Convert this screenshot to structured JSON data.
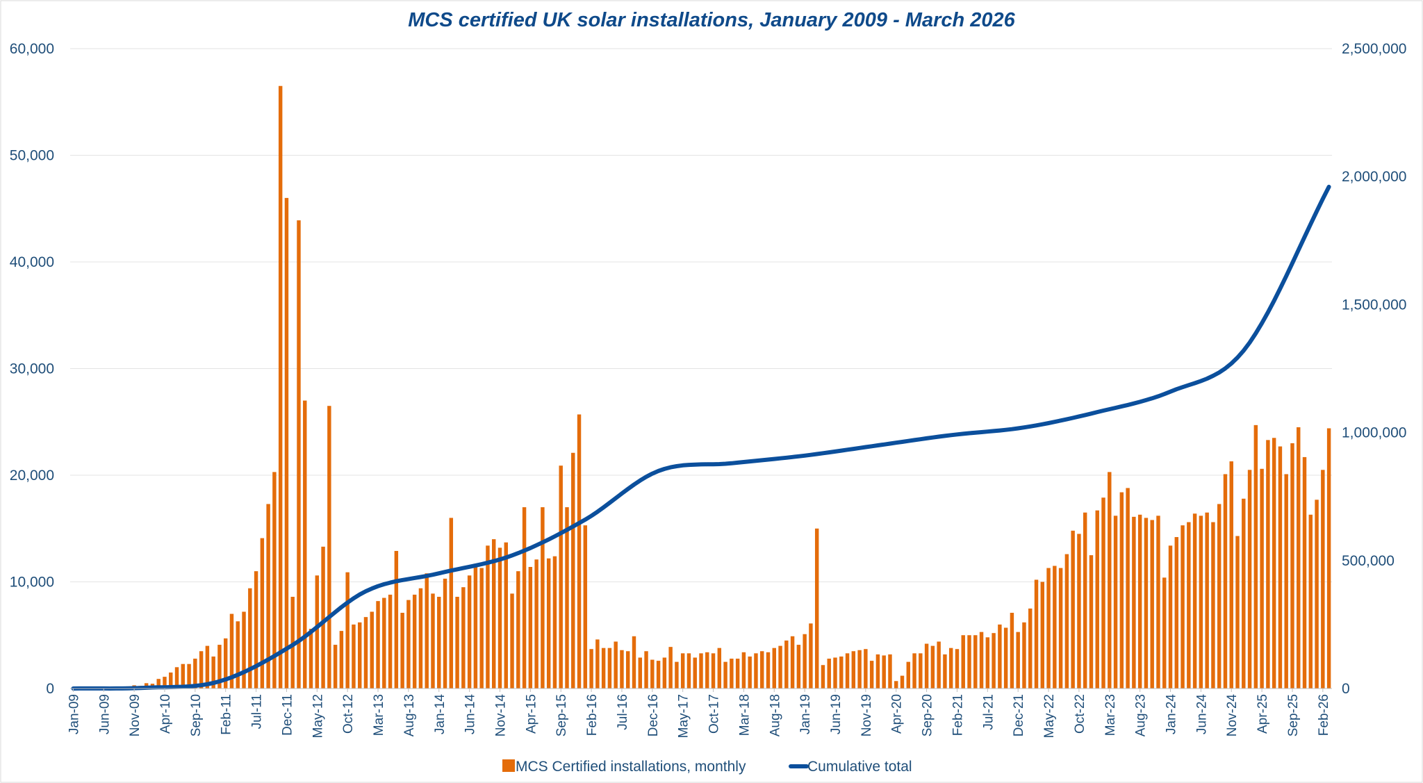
{
  "chart_data": {
    "type": "bar",
    "title": "MCS certified UK solar installations, January 2009 - March 2026",
    "xlabel": "",
    "ylabel": "",
    "y2label": "",
    "ylim": [
      0,
      60000
    ],
    "y2lim": [
      0,
      2500000
    ],
    "yticks": [
      0,
      10000,
      20000,
      30000,
      40000,
      50000,
      60000
    ],
    "yticklabels": [
      "0",
      "10,000",
      "20,000",
      "30,000",
      "40,000",
      "50,000",
      "60,000"
    ],
    "y2ticks": [
      0,
      500000,
      1000000,
      1500000,
      2000000,
      2500000
    ],
    "y2ticklabels": [
      "0",
      "500,000",
      "1,000,000",
      "1,500,000",
      "2,000,000",
      "2,500,000"
    ],
    "grid": true,
    "legend_position": "bottom",
    "x_start": "Jan-09",
    "x_end": "Mar-26",
    "xticklabels": [
      "Jan-09",
      "Jun-09",
      "Nov-09",
      "Apr-10",
      "Sep-10",
      "Feb-11",
      "Jul-11",
      "Dec-11",
      "May-12",
      "Oct-12",
      "Mar-13",
      "Aug-13",
      "Jan-14",
      "Jun-14",
      "Nov-14",
      "Apr-15",
      "Sep-15",
      "Feb-16",
      "Jul-16",
      "Dec-16",
      "May-17",
      "Oct-17",
      "Mar-18",
      "Aug-18",
      "Jan-19",
      "Jun-19",
      "Nov-19",
      "Apr-20",
      "Sep-20",
      "Feb-21",
      "Jul-21",
      "Dec-21",
      "May-22",
      "Oct-22",
      "Mar-23",
      "Aug-23",
      "Jan-24",
      "Jun-24",
      "Nov-24",
      "Apr-25",
      "Sep-25",
      "Feb-26"
    ],
    "series": [
      {
        "name": "MCS Certified installations, monthly",
        "kind": "bar",
        "axis": "left",
        "color": "#e46c0a",
        "values": [
          0,
          0,
          0,
          0,
          0,
          0,
          0,
          0,
          150,
          200,
          300,
          250,
          500,
          450,
          900,
          1100,
          1500,
          2000,
          2300,
          2300,
          2800,
          3500,
          4000,
          3000,
          4100,
          4700,
          7000,
          6300,
          7200,
          9400,
          11000,
          14100,
          17300,
          20300,
          56500,
          46000,
          8600,
          43900,
          27000,
          5600,
          10600,
          13300,
          26500,
          4100,
          5400,
          10900,
          6000,
          6200,
          6700,
          7200,
          8200,
          8500,
          8800,
          12900,
          7100,
          8300,
          8800,
          9400,
          10800,
          8900,
          8600,
          10300,
          16000,
          8600,
          9500,
          10600,
          11700,
          11300,
          13400,
          14000,
          13200,
          13700,
          8900,
          11000,
          17000,
          11400,
          12100,
          17000,
          12200,
          12400,
          20900,
          17000,
          22100,
          25700,
          15300,
          3700,
          4600,
          3800,
          3800,
          4400,
          3600,
          3500,
          4900,
          2900,
          3500,
          2700,
          2600,
          2900,
          3900,
          2500,
          3300,
          3300,
          2900,
          3300,
          3400,
          3300,
          3800,
          2500,
          2800,
          2800,
          3400,
          3000,
          3300,
          3500,
          3400,
          3800,
          4000,
          4500,
          4900,
          4100,
          5100,
          6100,
          15000,
          2200,
          2800,
          2900,
          3000,
          3300,
          3500,
          3600,
          3700,
          2600,
          3200,
          3100,
          3200,
          700,
          1200,
          2500,
          3300,
          3300,
          4200,
          4000,
          4400,
          3200,
          3800,
          3700,
          5000,
          5000,
          5000,
          5300,
          4800,
          5200,
          6000,
          5700,
          7100,
          5300,
          6200,
          7500,
          10200,
          10000,
          11300,
          11500,
          11300,
          12600,
          14800,
          14500,
          16500,
          12500,
          16700,
          17900,
          20300,
          16200,
          18400,
          18800,
          16100,
          16300,
          16000,
          15800,
          16200,
          10400,
          13400,
          14200,
          15300,
          15600,
          16400,
          16200,
          16500,
          15600,
          17300,
          20100,
          21300,
          14300,
          17800,
          20500,
          24700,
          20600,
          23300,
          23500,
          22700,
          20100,
          23000,
          24500,
          21700,
          16300,
          17700,
          20500,
          24400
        ]
      },
      {
        "name": "Cumulative total",
        "kind": "line",
        "axis": "right",
        "color": "#0b4f9c",
        "anchors_month_index": [
          0,
          12,
          24,
          36,
          48,
          60,
          72,
          84,
          96,
          108,
          120,
          132,
          144,
          156,
          168,
          180,
          192,
          206
        ],
        "anchors_value": [
          0,
          3000,
          28000,
          170000,
          380000,
          450000,
          520000,
          660000,
          850000,
          880000,
          910000,
          950000,
          990000,
          1020000,
          1080000,
          1160000,
          1320000,
          1960000
        ]
      }
    ]
  }
}
